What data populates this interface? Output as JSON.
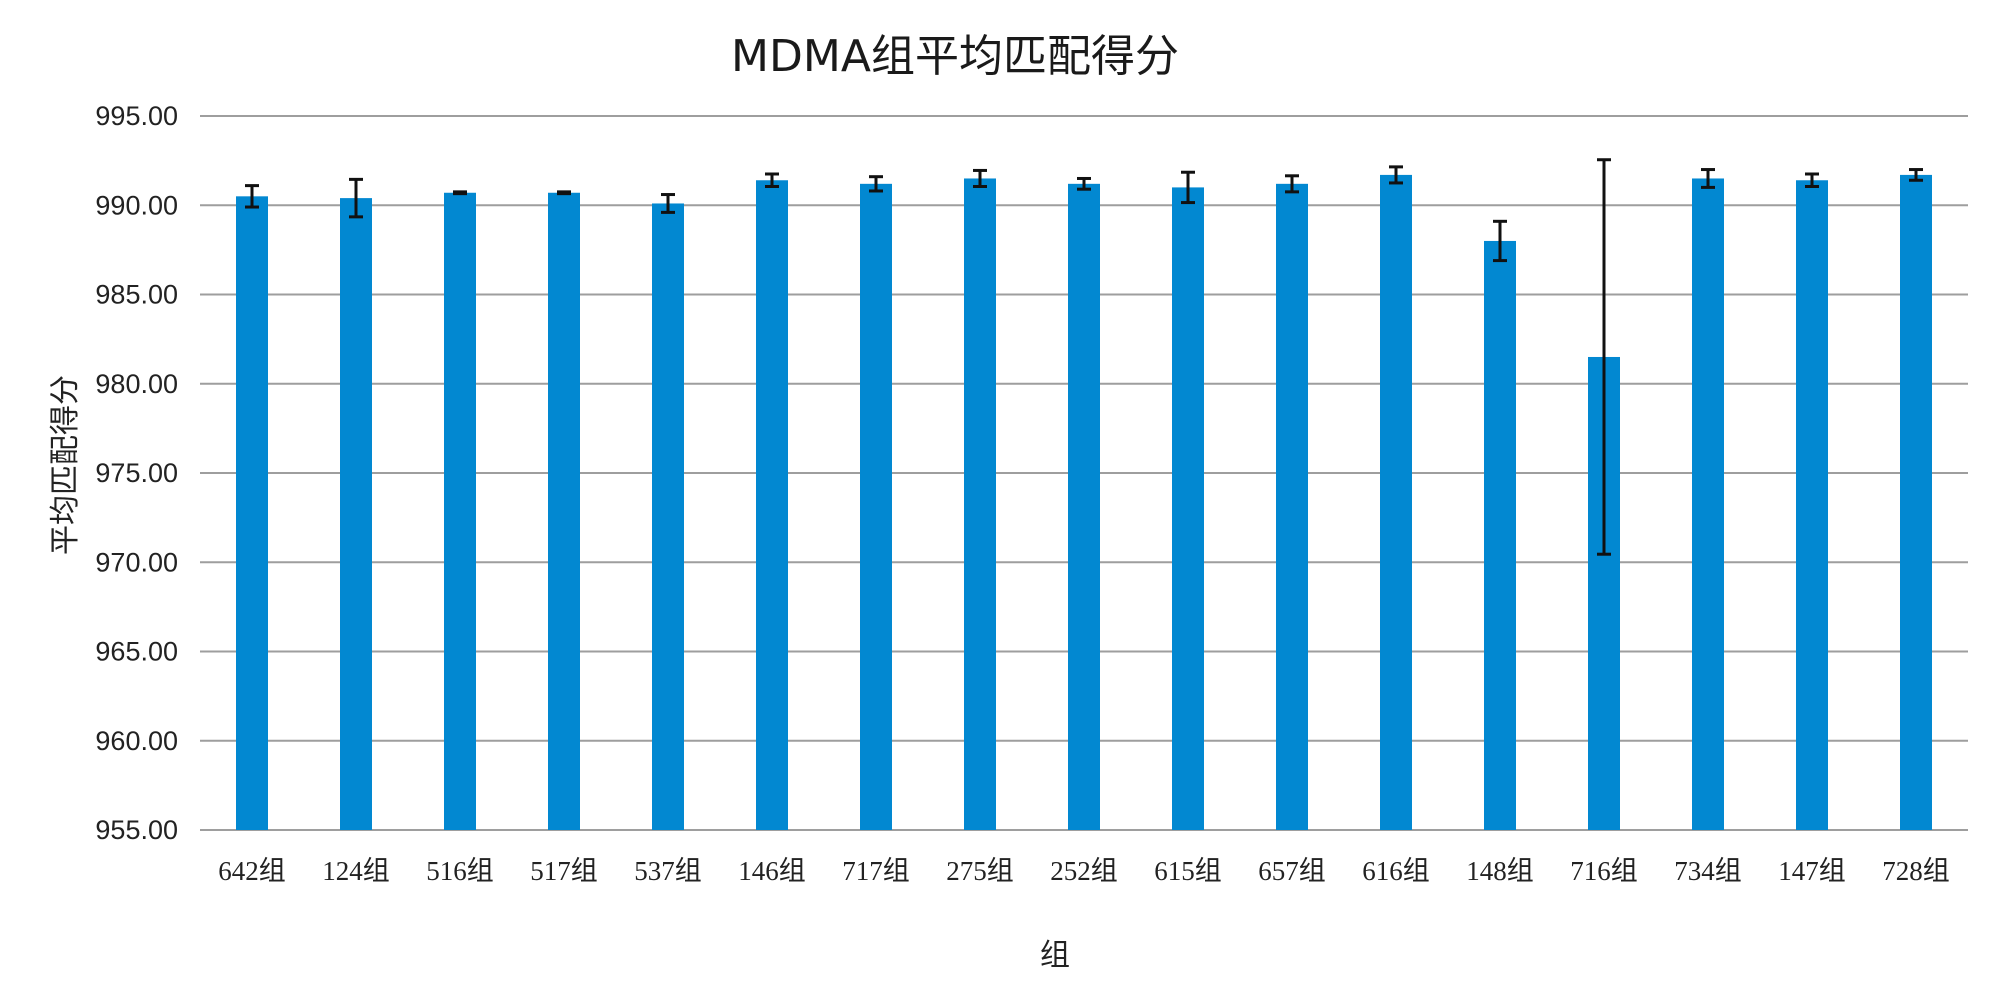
{
  "chart_data": {
    "type": "bar",
    "title": "MDMA组平均匹配得分",
    "xlabel": "组",
    "ylabel": "平均匹配得分",
    "ylim": [
      955,
      995
    ],
    "yticks": [
      "955.00",
      "960.00",
      "965.00",
      "970.00",
      "975.00",
      "980.00",
      "985.00",
      "990.00",
      "995.00"
    ],
    "grid": true,
    "legend": "none",
    "bar_color": "#0288d1",
    "error_color": "#111111",
    "categories": [
      "642组",
      "124组",
      "516组",
      "517组",
      "537组",
      "146组",
      "717组",
      "275组",
      "252组",
      "615组",
      "657组",
      "616组",
      "148组",
      "716组",
      "734组",
      "147组",
      "728组"
    ],
    "values": [
      990.5,
      990.4,
      990.7,
      990.7,
      990.1,
      991.4,
      991.2,
      991.5,
      991.2,
      991.0,
      991.2,
      991.7,
      988.0,
      981.5,
      991.5,
      991.4,
      991.7
    ],
    "error": [
      0.6,
      1.05,
      0.05,
      0.05,
      0.5,
      0.35,
      0.4,
      0.45,
      0.3,
      0.85,
      0.45,
      0.45,
      1.1,
      11.05,
      0.5,
      0.35,
      0.3
    ]
  }
}
